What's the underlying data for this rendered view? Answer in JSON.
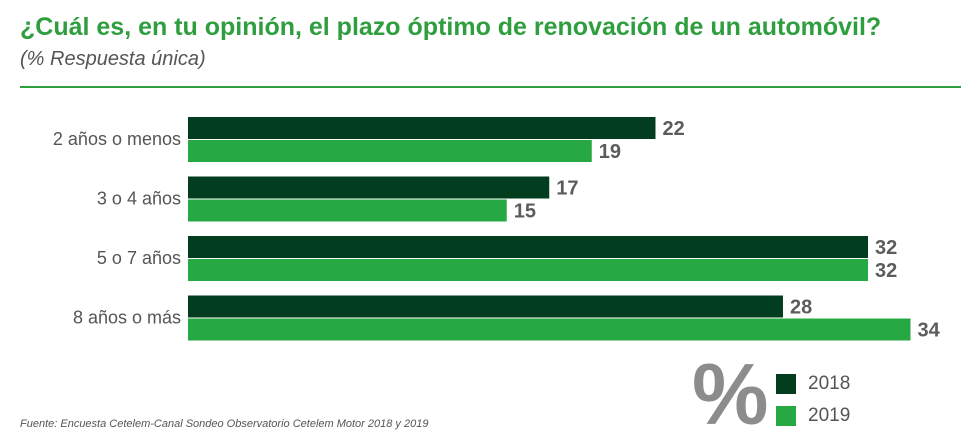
{
  "header": {
    "title": "¿Cuál es, en tu opinión, el plazo óptimo de renovación de un automóvil?",
    "subtitle": "(% Respuesta única)"
  },
  "colors": {
    "accent": "#2e9e3e",
    "series_2018": "#033d1f",
    "series_2019": "#26a843"
  },
  "chart_data": {
    "type": "bar",
    "orientation": "horizontal",
    "title": "¿Cuál es, en tu opinión, el plazo óptimo de renovación de un automóvil?",
    "subtitle": "(% Respuesta única)",
    "xlabel": "",
    "ylabel": "",
    "xlim": [
      0,
      34
    ],
    "grid": false,
    "categories": [
      "2 años o menos",
      "3 o 4 años",
      "5 o 7 años",
      "8 años o más"
    ],
    "series": [
      {
        "name": "2018",
        "values": [
          22,
          17,
          32,
          28
        ]
      },
      {
        "name": "2019",
        "values": [
          19,
          15,
          32,
          34
        ]
      }
    ],
    "legend_position": "bottom-right"
  },
  "legend": {
    "unit_symbol": "%",
    "items": [
      {
        "label": "2018"
      },
      {
        "label": "2019"
      }
    ]
  },
  "footer": {
    "source": "Fuente: Encuesta Cetelem-Canal Sondeo Observatorio Cetelem Motor 2018 y 2019"
  }
}
